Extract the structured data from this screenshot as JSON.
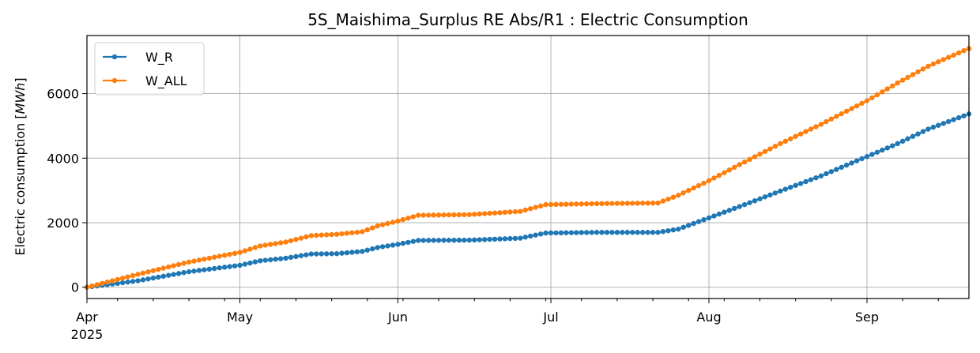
{
  "chart_data": {
    "type": "line",
    "title": "5S_Maishima_Surplus RE Abs/R1 : Electric Consumption",
    "ylabel_text": "Electric consumption [",
    "ylabel_unit": "MWh",
    "ylabel_close": "]",
    "xlabel": "",
    "xlim": [
      "2025-04-01",
      "2025-09-21"
    ],
    "ylim": [
      -350,
      7800
    ],
    "yticks": [
      0,
      2000,
      4000,
      6000
    ],
    "xticks": [
      {
        "date": "2025-04-01",
        "label": "Apr",
        "sublabel": "2025"
      },
      {
        "date": "2025-05-01",
        "label": "May"
      },
      {
        "date": "2025-06-01",
        "label": "Jun"
      },
      {
        "date": "2025-07-01",
        "label": "Jul"
      },
      {
        "date": "2025-08-01",
        "label": "Aug"
      },
      {
        "date": "2025-09-01",
        "label": "Sep"
      }
    ],
    "grid": true,
    "legend": "top-left",
    "marker": "circle",
    "series": [
      {
        "name": "W_R",
        "color": "#1f77b4",
        "points": [
          [
            "2025-04-01",
            0
          ],
          [
            "2025-04-11",
            200
          ],
          [
            "2025-04-21",
            480
          ],
          [
            "2025-05-01",
            680
          ],
          [
            "2025-05-05",
            820
          ],
          [
            "2025-05-10",
            900
          ],
          [
            "2025-05-15",
            1030
          ],
          [
            "2025-05-20",
            1040
          ],
          [
            "2025-05-25",
            1110
          ],
          [
            "2025-05-28",
            1230
          ],
          [
            "2025-06-01",
            1330
          ],
          [
            "2025-06-05",
            1450
          ],
          [
            "2025-06-15",
            1460
          ],
          [
            "2025-06-25",
            1520
          ],
          [
            "2025-06-30",
            1680
          ],
          [
            "2025-07-10",
            1700
          ],
          [
            "2025-07-22",
            1700
          ],
          [
            "2025-07-26",
            1800
          ],
          [
            "2025-08-01",
            2150
          ],
          [
            "2025-08-07",
            2500
          ],
          [
            "2025-08-15",
            2980
          ],
          [
            "2025-08-23",
            3450
          ],
          [
            "2025-09-01",
            4050
          ],
          [
            "2025-09-07",
            4450
          ],
          [
            "2025-09-13",
            4900
          ],
          [
            "2025-09-21",
            5370
          ]
        ]
      },
      {
        "name": "W_ALL",
        "color": "#ff7f0e",
        "points": [
          [
            "2025-04-01",
            0
          ],
          [
            "2025-04-11",
            400
          ],
          [
            "2025-04-21",
            780
          ],
          [
            "2025-05-01",
            1080
          ],
          [
            "2025-05-05",
            1280
          ],
          [
            "2025-05-10",
            1400
          ],
          [
            "2025-05-15",
            1600
          ],
          [
            "2025-05-20",
            1640
          ],
          [
            "2025-05-25",
            1720
          ],
          [
            "2025-05-28",
            1900
          ],
          [
            "2025-06-01",
            2050
          ],
          [
            "2025-06-05",
            2230
          ],
          [
            "2025-06-15",
            2250
          ],
          [
            "2025-06-25",
            2350
          ],
          [
            "2025-06-30",
            2560
          ],
          [
            "2025-07-10",
            2590
          ],
          [
            "2025-07-22",
            2610
          ],
          [
            "2025-07-26",
            2850
          ],
          [
            "2025-08-01",
            3300
          ],
          [
            "2025-08-07",
            3800
          ],
          [
            "2025-08-15",
            4450
          ],
          [
            "2025-08-23",
            5050
          ],
          [
            "2025-09-01",
            5780
          ],
          [
            "2025-09-07",
            6330
          ],
          [
            "2025-09-13",
            6850
          ],
          [
            "2025-09-21",
            7400
          ]
        ]
      }
    ]
  }
}
